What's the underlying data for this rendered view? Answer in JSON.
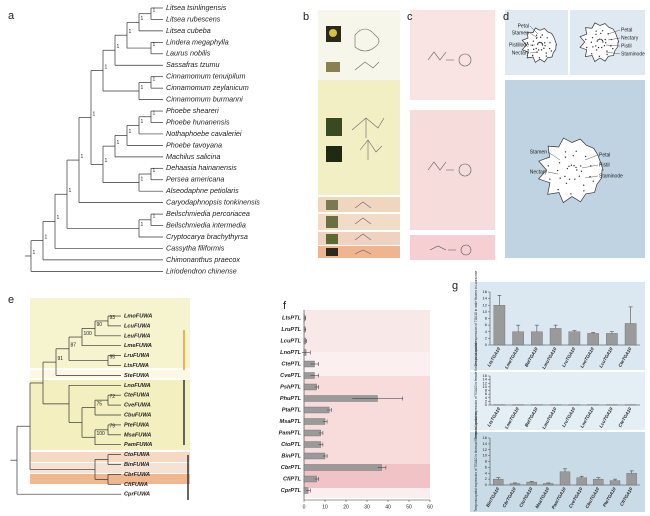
{
  "panel_labels": [
    "a",
    "b",
    "c",
    "d",
    "e",
    "f",
    "g"
  ],
  "panel_a": {
    "species": [
      "Litsea tsinlingensis",
      "Litsea rubescens",
      "Litsea cubeba",
      "Lindera megaphylla",
      "Laurus nobilis",
      "Sassafras tzumu",
      "Cinnamomum tenuipilum",
      "Cinnamomum zeylanicum",
      "Cinnamomum burmanni",
      "Phoebe sheareri",
      "Phoebe hunanensis",
      "Nothaphoebe cavaleriei",
      "Phoebe tavoyana",
      "Machilus salicina",
      "Dehaasia hainanensis",
      "Persea americana",
      "Alseodaphne petiolaris",
      "Caryodaphnopsis tonkinensis",
      "Beilschmiedia percoriacea",
      "Beilschmiedia intermedia",
      "Cryptocarya brachythyrsa",
      "Cassytha filiformis",
      "Chimonanthus praecox",
      "Liriodendron chinense"
    ],
    "support": [
      1,
      1,
      1,
      1,
      1,
      1,
      1,
      1,
      1,
      1,
      1,
      1,
      1,
      1,
      1,
      1,
      1,
      1,
      1,
      1,
      1,
      1,
      1
    ]
  },
  "panel_d": {
    "top_left": [
      "Petal",
      "Stamen",
      "Pistillode",
      "Nectary"
    ],
    "top_right": [
      "Petal",
      "Nectary",
      "Pistil",
      "Staminode"
    ],
    "bottom": [
      "Stamen",
      "Petal",
      "Pistil",
      "Nectary",
      "Staminode"
    ]
  },
  "panel_e": {
    "genes": [
      "LmoFUWA",
      "LcuFUWA",
      "LeuFUWA",
      "LmeFUWA",
      "LruFUWA",
      "LtsFUWA",
      "SteFUWA",
      "LnoFUWA",
      "CteFUWA",
      "CveFUWA",
      "CbuFUWA",
      "PteFUWA",
      "MsaFUWA",
      "PamFUWA",
      "CtoFUWA",
      "BinFUWA",
      "CbrFUWA",
      "CfiFUWA",
      "CprFUWA"
    ],
    "support": [
      93,
      90,
      100,
      95,
      87,
      91,
      72,
      75,
      79,
      100
    ]
  },
  "chart_data": [
    {
      "type": "bar",
      "orientation": "horizontal",
      "categories": [
        "LtsPTL",
        "LruPTL",
        "LcuPTL",
        "LnoPTL",
        "CtePTL",
        "CvePTL",
        "PshPTL",
        "PhuPTL",
        "PtaPTL",
        "MsaPTL",
        "PamPTL",
        "CtoPTL",
        "BinPTL",
        "CbrPTL",
        "CfiPTL",
        "CprPTL"
      ],
      "values": [
        0.5,
        0.5,
        0.8,
        1,
        5,
        5,
        6,
        35,
        12,
        10,
        8,
        8,
        10,
        37,
        6,
        2
      ],
      "errors": [
        0.3,
        0.3,
        0.5,
        2,
        2,
        2,
        1,
        12,
        1,
        1,
        1,
        1,
        1,
        2,
        1,
        1
      ],
      "color": "#9a9a9a",
      "xlim": [
        0,
        60
      ],
      "xticks": [
        0,
        10,
        20,
        30,
        40,
        50,
        60
      ]
    },
    {
      "type": "bar",
      "ylabel": "Temporal-spatial expression of TGA10 in male flowers in Lauraceae",
      "categories": [
        "LtsTGA10",
        "LmeTGA10",
        "BelTGA10",
        "LmoTGA10",
        "LruTGA10",
        "LnoTGA10",
        "LcuTGA10",
        "CteTGA10"
      ],
      "values": [
        12,
        4,
        4,
        5,
        4,
        3.5,
        3.5,
        6.5
      ],
      "errors": [
        3,
        2,
        2,
        1,
        0.3,
        0.3,
        0.5,
        5
      ],
      "color": "#9a9a9a",
      "ylim": [
        0,
        16
      ],
      "yticks": [
        0,
        2,
        4,
        6,
        8,
        10,
        12,
        14,
        16
      ]
    },
    {
      "type": "bar",
      "ylabel": "Temporal-spatial expression of TGA10 in female flowers in Lauraceae",
      "categories": [
        "LtsTGA10",
        "LmeTGA10",
        "BelTGA10",
        "LmoTGA10",
        "LruTGA10",
        "LnoTGA10",
        "LcuTGA10",
        "CteTGA10"
      ],
      "values": [
        0.1,
        0.1,
        0.1,
        0.1,
        0.1,
        0.1,
        0.1,
        0.1
      ],
      "color": "#9a9a9a",
      "ylim": [
        0,
        16
      ],
      "yticks": [
        0,
        2,
        4,
        6,
        8,
        10,
        12,
        14,
        16
      ]
    },
    {
      "type": "bar",
      "ylabel": "Temporal-spatial expression of TGA10 in bisexual flowers in Lauraceae",
      "categories": [
        "BinTGA10",
        "CbrTGA10",
        "CtoTGA10",
        "MsaTGA10",
        "PamTGA10",
        "CveTGA10",
        "CbuTGA10",
        "PteTGA10",
        "CfiTGA10"
      ],
      "values": [
        2,
        0.5,
        1,
        0.5,
        4.5,
        2.5,
        2,
        1.5,
        4
      ],
      "errors": [
        0.5,
        0.2,
        0.2,
        0.2,
        1,
        0.5,
        0.5,
        0.5,
        0.8
      ],
      "color": "#9a9a9a",
      "ylim": [
        0,
        16
      ],
      "yticks": [
        0,
        2,
        4,
        6,
        8,
        10,
        12,
        14,
        16
      ]
    }
  ]
}
